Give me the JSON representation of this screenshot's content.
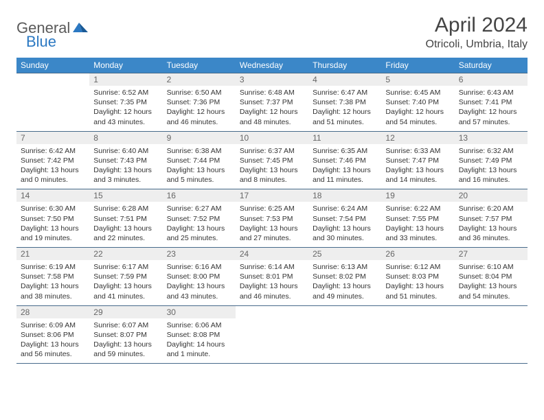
{
  "logo": {
    "part1": "General",
    "part2": "Blue"
  },
  "title": "April 2024",
  "location": "Otricoli, Umbria, Italy",
  "colors": {
    "header_bg": "#3b87c8",
    "header_text": "#ffffff",
    "daynum_bg": "#eeeeee",
    "daynum_text": "#666666",
    "border": "#466a8a",
    "logo_gray": "#5a5a5a",
    "logo_blue": "#2b78c2"
  },
  "day_headers": [
    "Sunday",
    "Monday",
    "Tuesday",
    "Wednesday",
    "Thursday",
    "Friday",
    "Saturday"
  ],
  "weeks": [
    {
      "nums": [
        "",
        "1",
        "2",
        "3",
        "4",
        "5",
        "6"
      ],
      "cells": [
        null,
        {
          "sunrise": "Sunrise: 6:52 AM",
          "sunset": "Sunset: 7:35 PM",
          "day1": "Daylight: 12 hours",
          "day2": "and 43 minutes."
        },
        {
          "sunrise": "Sunrise: 6:50 AM",
          "sunset": "Sunset: 7:36 PM",
          "day1": "Daylight: 12 hours",
          "day2": "and 46 minutes."
        },
        {
          "sunrise": "Sunrise: 6:48 AM",
          "sunset": "Sunset: 7:37 PM",
          "day1": "Daylight: 12 hours",
          "day2": "and 48 minutes."
        },
        {
          "sunrise": "Sunrise: 6:47 AM",
          "sunset": "Sunset: 7:38 PM",
          "day1": "Daylight: 12 hours",
          "day2": "and 51 minutes."
        },
        {
          "sunrise": "Sunrise: 6:45 AM",
          "sunset": "Sunset: 7:40 PM",
          "day1": "Daylight: 12 hours",
          "day2": "and 54 minutes."
        },
        {
          "sunrise": "Sunrise: 6:43 AM",
          "sunset": "Sunset: 7:41 PM",
          "day1": "Daylight: 12 hours",
          "day2": "and 57 minutes."
        }
      ]
    },
    {
      "nums": [
        "7",
        "8",
        "9",
        "10",
        "11",
        "12",
        "13"
      ],
      "cells": [
        {
          "sunrise": "Sunrise: 6:42 AM",
          "sunset": "Sunset: 7:42 PM",
          "day1": "Daylight: 13 hours",
          "day2": "and 0 minutes."
        },
        {
          "sunrise": "Sunrise: 6:40 AM",
          "sunset": "Sunset: 7:43 PM",
          "day1": "Daylight: 13 hours",
          "day2": "and 3 minutes."
        },
        {
          "sunrise": "Sunrise: 6:38 AM",
          "sunset": "Sunset: 7:44 PM",
          "day1": "Daylight: 13 hours",
          "day2": "and 5 minutes."
        },
        {
          "sunrise": "Sunrise: 6:37 AM",
          "sunset": "Sunset: 7:45 PM",
          "day1": "Daylight: 13 hours",
          "day2": "and 8 minutes."
        },
        {
          "sunrise": "Sunrise: 6:35 AM",
          "sunset": "Sunset: 7:46 PM",
          "day1": "Daylight: 13 hours",
          "day2": "and 11 minutes."
        },
        {
          "sunrise": "Sunrise: 6:33 AM",
          "sunset": "Sunset: 7:47 PM",
          "day1": "Daylight: 13 hours",
          "day2": "and 14 minutes."
        },
        {
          "sunrise": "Sunrise: 6:32 AM",
          "sunset": "Sunset: 7:49 PM",
          "day1": "Daylight: 13 hours",
          "day2": "and 16 minutes."
        }
      ]
    },
    {
      "nums": [
        "14",
        "15",
        "16",
        "17",
        "18",
        "19",
        "20"
      ],
      "cells": [
        {
          "sunrise": "Sunrise: 6:30 AM",
          "sunset": "Sunset: 7:50 PM",
          "day1": "Daylight: 13 hours",
          "day2": "and 19 minutes."
        },
        {
          "sunrise": "Sunrise: 6:28 AM",
          "sunset": "Sunset: 7:51 PM",
          "day1": "Daylight: 13 hours",
          "day2": "and 22 minutes."
        },
        {
          "sunrise": "Sunrise: 6:27 AM",
          "sunset": "Sunset: 7:52 PM",
          "day1": "Daylight: 13 hours",
          "day2": "and 25 minutes."
        },
        {
          "sunrise": "Sunrise: 6:25 AM",
          "sunset": "Sunset: 7:53 PM",
          "day1": "Daylight: 13 hours",
          "day2": "and 27 minutes."
        },
        {
          "sunrise": "Sunrise: 6:24 AM",
          "sunset": "Sunset: 7:54 PM",
          "day1": "Daylight: 13 hours",
          "day2": "and 30 minutes."
        },
        {
          "sunrise": "Sunrise: 6:22 AM",
          "sunset": "Sunset: 7:55 PM",
          "day1": "Daylight: 13 hours",
          "day2": "and 33 minutes."
        },
        {
          "sunrise": "Sunrise: 6:20 AM",
          "sunset": "Sunset: 7:57 PM",
          "day1": "Daylight: 13 hours",
          "day2": "and 36 minutes."
        }
      ]
    },
    {
      "nums": [
        "21",
        "22",
        "23",
        "24",
        "25",
        "26",
        "27"
      ],
      "cells": [
        {
          "sunrise": "Sunrise: 6:19 AM",
          "sunset": "Sunset: 7:58 PM",
          "day1": "Daylight: 13 hours",
          "day2": "and 38 minutes."
        },
        {
          "sunrise": "Sunrise: 6:17 AM",
          "sunset": "Sunset: 7:59 PM",
          "day1": "Daylight: 13 hours",
          "day2": "and 41 minutes."
        },
        {
          "sunrise": "Sunrise: 6:16 AM",
          "sunset": "Sunset: 8:00 PM",
          "day1": "Daylight: 13 hours",
          "day2": "and 43 minutes."
        },
        {
          "sunrise": "Sunrise: 6:14 AM",
          "sunset": "Sunset: 8:01 PM",
          "day1": "Daylight: 13 hours",
          "day2": "and 46 minutes."
        },
        {
          "sunrise": "Sunrise: 6:13 AM",
          "sunset": "Sunset: 8:02 PM",
          "day1": "Daylight: 13 hours",
          "day2": "and 49 minutes."
        },
        {
          "sunrise": "Sunrise: 6:12 AM",
          "sunset": "Sunset: 8:03 PM",
          "day1": "Daylight: 13 hours",
          "day2": "and 51 minutes."
        },
        {
          "sunrise": "Sunrise: 6:10 AM",
          "sunset": "Sunset: 8:04 PM",
          "day1": "Daylight: 13 hours",
          "day2": "and 54 minutes."
        }
      ]
    },
    {
      "nums": [
        "28",
        "29",
        "30",
        "",
        "",
        "",
        ""
      ],
      "cells": [
        {
          "sunrise": "Sunrise: 6:09 AM",
          "sunset": "Sunset: 8:06 PM",
          "day1": "Daylight: 13 hours",
          "day2": "and 56 minutes."
        },
        {
          "sunrise": "Sunrise: 6:07 AM",
          "sunset": "Sunset: 8:07 PM",
          "day1": "Daylight: 13 hours",
          "day2": "and 59 minutes."
        },
        {
          "sunrise": "Sunrise: 6:06 AM",
          "sunset": "Sunset: 8:08 PM",
          "day1": "Daylight: 14 hours",
          "day2": "and 1 minute."
        },
        null,
        null,
        null,
        null
      ]
    }
  ]
}
